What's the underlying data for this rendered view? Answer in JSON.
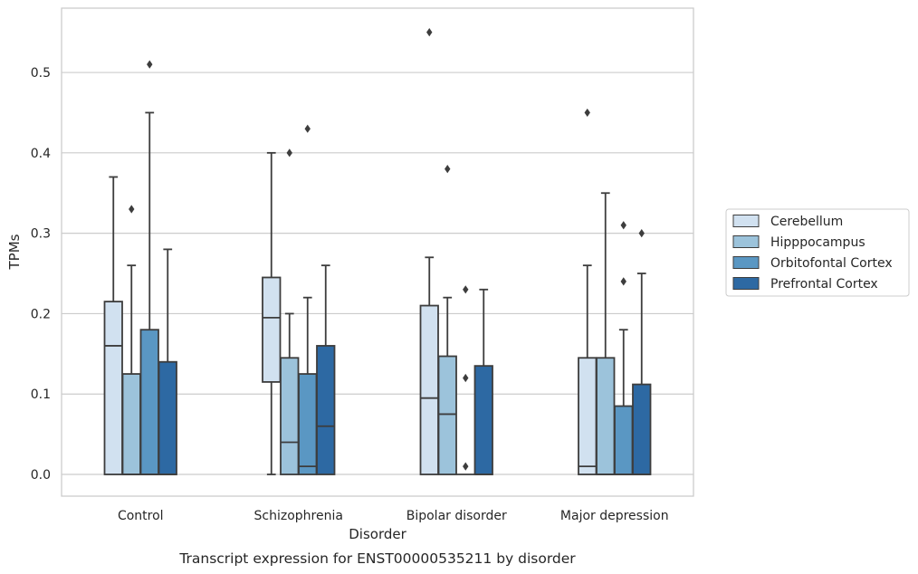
{
  "chart_data": {
    "type": "box",
    "xlabel": "Disorder",
    "ylabel": "TPMs",
    "caption": "Transcript expression for ENST00000535211 by disorder",
    "ylim": [
      -0.027,
      0.58
    ],
    "yticks": [
      "0.0",
      "0.1",
      "0.2",
      "0.3",
      "0.4",
      "0.5"
    ],
    "ytick_values": [
      0.0,
      0.1,
      0.2,
      0.3,
      0.4,
      0.5
    ],
    "grid": true,
    "legend_position": "right",
    "categories": [
      "Control",
      "Schizophrenia",
      "Bipolar disorder",
      "Major depression"
    ],
    "series": [
      {
        "name": "Cerebellum",
        "color": "#d1e1f0",
        "boxes": [
          {
            "q1": 0.0,
            "median": 0.16,
            "q3": 0.215,
            "whisker_low": 0.0,
            "whisker_high": 0.37,
            "outliers": []
          },
          {
            "q1": 0.115,
            "median": 0.195,
            "q3": 0.245,
            "whisker_low": 0.0,
            "whisker_high": 0.4,
            "outliers": []
          },
          {
            "q1": 0.0,
            "median": 0.095,
            "q3": 0.21,
            "whisker_low": 0.0,
            "whisker_high": 0.27,
            "outliers": [
              0.55
            ]
          },
          {
            "q1": 0.0,
            "median": 0.01,
            "q3": 0.145,
            "whisker_low": 0.0,
            "whisker_high": 0.26,
            "outliers": [
              0.45
            ]
          }
        ]
      },
      {
        "name": "Hipppocampus",
        "color": "#9cc3db",
        "boxes": [
          {
            "q1": 0.0,
            "median": 0.0,
            "q3": 0.125,
            "whisker_low": 0.0,
            "whisker_high": 0.26,
            "outliers": [
              0.33
            ]
          },
          {
            "q1": 0.0,
            "median": 0.04,
            "q3": 0.145,
            "whisker_low": 0.0,
            "whisker_high": 0.2,
            "outliers": [
              0.4
            ]
          },
          {
            "q1": 0.0,
            "median": 0.075,
            "q3": 0.147,
            "whisker_low": 0.0,
            "whisker_high": 0.22,
            "outliers": [
              0.38
            ]
          },
          {
            "q1": 0.0,
            "median": 0.0,
            "q3": 0.145,
            "whisker_low": 0.0,
            "whisker_high": 0.35,
            "outliers": []
          }
        ]
      },
      {
        "name": "Orbitofontal Cortex",
        "color": "#5a97c3",
        "boxes": [
          {
            "q1": 0.0,
            "median": 0.0,
            "q3": 0.18,
            "whisker_low": 0.0,
            "whisker_high": 0.45,
            "outliers": [
              0.51
            ]
          },
          {
            "q1": 0.0,
            "median": 0.01,
            "q3": 0.125,
            "whisker_low": 0.0,
            "whisker_high": 0.22,
            "outliers": [
              0.43
            ]
          },
          {
            "q1": 0.0,
            "median": 0.0,
            "q3": 0.0,
            "whisker_low": 0.0,
            "whisker_high": 0.0,
            "outliers": [
              0.01,
              0.12,
              0.23
            ]
          },
          {
            "q1": 0.0,
            "median": 0.0,
            "q3": 0.085,
            "whisker_low": 0.0,
            "whisker_high": 0.18,
            "outliers": [
              0.24,
              0.31
            ]
          }
        ]
      },
      {
        "name": "Prefrontal Cortex",
        "color": "#2d69a3",
        "boxes": [
          {
            "q1": 0.0,
            "median": 0.0,
            "q3": 0.14,
            "whisker_low": 0.0,
            "whisker_high": 0.28,
            "outliers": []
          },
          {
            "q1": 0.0,
            "median": 0.06,
            "q3": 0.16,
            "whisker_low": 0.0,
            "whisker_high": 0.26,
            "outliers": []
          },
          {
            "q1": 0.0,
            "median": 0.0,
            "q3": 0.135,
            "whisker_low": 0.0,
            "whisker_high": 0.23,
            "outliers": []
          },
          {
            "q1": 0.0,
            "median": 0.0,
            "q3": 0.112,
            "whisker_low": 0.0,
            "whisker_high": 0.25,
            "outliers": [
              0.3
            ]
          }
        ]
      }
    ]
  }
}
